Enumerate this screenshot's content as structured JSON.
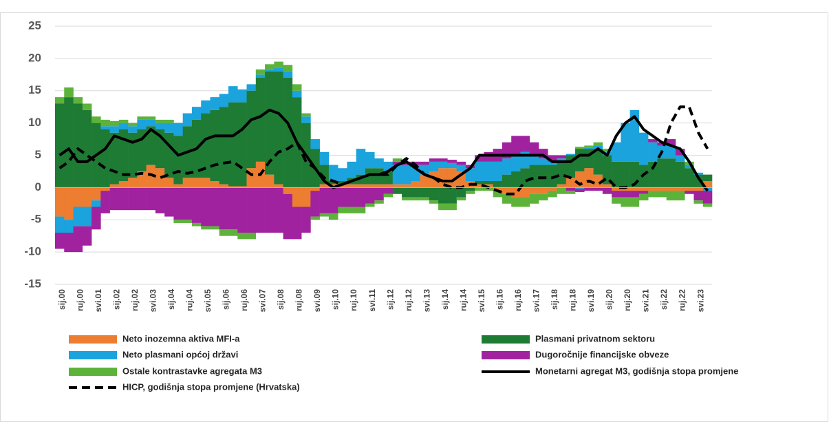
{
  "chart_data": {
    "type": "bar",
    "stacked": true,
    "grid": true,
    "ylim": [
      -15,
      25
    ],
    "yticks": [
      -15,
      -10,
      -5,
      0,
      5,
      10,
      15,
      20,
      25
    ],
    "categories": [
      "sij.00",
      null,
      "ruj.00",
      null,
      "svi.01",
      null,
      "sij.02",
      null,
      "ruj.02",
      null,
      "svi.03",
      null,
      "sij.04",
      null,
      "ruj.04",
      null,
      "svi.05",
      null,
      "sij.06",
      null,
      "ruj.06",
      null,
      "svi.07",
      null,
      "sij.08",
      null,
      "ruj.08",
      null,
      "svi.09",
      null,
      "sij.10",
      null,
      "ruj.10",
      null,
      "svi.11",
      null,
      "sij.12",
      null,
      "ruj.12",
      null,
      "svi.13",
      null,
      "sij.14",
      null,
      "ruj.14",
      null,
      "svi.15",
      null,
      "sij.16",
      null,
      "ruj.16",
      null,
      "svi.17",
      null,
      "sij.18",
      null,
      "ruj.18",
      null,
      "svi.19",
      null,
      "sij.20",
      null,
      "ruj.20",
      null,
      "svi.21",
      null,
      "sij.22",
      null,
      "ruj.22",
      null,
      "svi.23",
      null
    ],
    "series": [
      {
        "name": "Neto inozemna aktiva MFI-a",
        "color": "#ED7D31",
        "type": "bar",
        "values": [
          -4.5,
          -5,
          -3,
          -3,
          -2,
          -0.5,
          0.5,
          1,
          1.5,
          2.5,
          3.5,
          3,
          1.5,
          0.5,
          1.5,
          1.5,
          1.5,
          1,
          0.5,
          0.2,
          0.2,
          3,
          4,
          2,
          0.5,
          -1,
          -3,
          -3,
          -0.5,
          0.5,
          0.5,
          0.5,
          0.5,
          0.5,
          0.5,
          0.5,
          0.5,
          0.5,
          0.5,
          1,
          2,
          2.5,
          3,
          3,
          2.5,
          1,
          0.5,
          0.5,
          -0.5,
          -1,
          -1.5,
          -1.5,
          -1,
          -1,
          -0.5,
          0.5,
          1.5,
          2.5,
          3,
          2,
          0.5,
          -0.5,
          -0.5,
          -0.5,
          -0.5,
          -0.5,
          -0.5,
          -0.5,
          -0.5,
          -0.5,
          -0.5,
          1
        ]
      },
      {
        "name": "Plasmani privatnom sektoru",
        "color": "#1E7B34",
        "type": "bar",
        "values": [
          13,
          14,
          13,
          12,
          10,
          9,
          8,
          8,
          7,
          6.5,
          6,
          6,
          7,
          7.5,
          8,
          9,
          10,
          11,
          12,
          13,
          13,
          12,
          13,
          16,
          17.5,
          17,
          14,
          10,
          6,
          3,
          0.5,
          0.5,
          1,
          1.5,
          2.5,
          2.5,
          2,
          -1,
          -1.5,
          -1.5,
          -1.5,
          -2,
          -2.5,
          -2.5,
          -1.5,
          -0.5,
          0.5,
          0.5,
          1,
          2,
          2.5,
          3,
          3.5,
          3.5,
          3.5,
          3.5,
          3.5,
          3.5,
          3,
          4,
          4.5,
          4,
          4,
          4,
          3.5,
          4,
          4.5,
          4.5,
          4,
          3,
          2,
          1
        ]
      },
      {
        "name": "Neto plasmani općoj državi",
        "color": "#1AA3DC",
        "type": "bar",
        "values": [
          -2.5,
          -2,
          -3,
          -3,
          -1,
          0.5,
          1,
          1,
          1,
          1.5,
          1,
          1,
          1.5,
          2,
          2,
          2,
          2,
          2,
          2,
          2.5,
          2,
          1,
          0.5,
          0.3,
          0.5,
          1,
          1,
          1,
          1.5,
          2,
          2.5,
          2,
          2.5,
          4,
          2.5,
          1.5,
          1.5,
          3,
          3,
          2.5,
          1.5,
          1.5,
          1,
          0.8,
          1,
          2,
          3,
          3,
          3,
          2.5,
          2.5,
          2.5,
          1.5,
          1,
          0.5,
          0.5,
          0.2,
          -0.2,
          0.2,
          0.5,
          0.5,
          3,
          6,
          8,
          5,
          3,
          2,
          2,
          1,
          0.5,
          0.3,
          -0.5
        ]
      },
      {
        "name": "Dugoročnije financijske obveze",
        "color": "#A0229F",
        "type": "bar",
        "values": [
          -2.5,
          -3,
          -4,
          -3,
          -3.5,
          -3.5,
          -3.5,
          -3.5,
          -3.5,
          -3.5,
          -3.5,
          -4,
          -4.5,
          -5,
          -5,
          -5.5,
          -6,
          -6,
          -6.5,
          -6.5,
          -7,
          -7,
          -7,
          -7,
          -7,
          -7,
          -5,
          -4,
          -4,
          -4,
          -4,
          -3,
          -3,
          -3,
          -2.5,
          -2,
          -1,
          0.5,
          0.5,
          0.5,
          0.5,
          0.5,
          0.5,
          0.5,
          0.5,
          0.5,
          1,
          1.5,
          2,
          2.5,
          3,
          2.5,
          2,
          1.5,
          1,
          0.5,
          -0.5,
          -0.5,
          -0.5,
          -0.5,
          -1,
          -1,
          -1,
          -1,
          -0.5,
          0.5,
          0.5,
          1,
          1,
          -0.5,
          -1.5,
          -2
        ]
      },
      {
        "name": "Ostale kontrastavke agregata M3",
        "color": "#5DB33A",
        "type": "bar",
        "values": [
          1,
          1.5,
          1,
          1,
          1,
          1,
          0.8,
          0.5,
          0.5,
          0.5,
          0.5,
          0.5,
          0.5,
          -0.5,
          -0.5,
          -0.5,
          -0.5,
          -0.5,
          -1,
          -1,
          -1,
          -1,
          0.8,
          0.8,
          1,
          1,
          1,
          0.5,
          -0.5,
          -0.5,
          -1,
          -1,
          -1,
          -1,
          -0.5,
          -0.5,
          -0.5,
          0.5,
          -0.5,
          -0.5,
          -0.5,
          -0.5,
          -1,
          -1,
          -0.5,
          -0.5,
          -0.5,
          -0.5,
          -1,
          -1.5,
          -1.5,
          -1.5,
          -1.5,
          -1,
          -1,
          -1,
          -0.5,
          0.3,
          0.3,
          0.5,
          0.5,
          -1,
          -1.5,
          -1.5,
          -1,
          -1,
          -1,
          -1.5,
          -1.5,
          0.5,
          -0.5,
          -0.5
        ]
      },
      {
        "name": "Monetarni agregat M3, godišnja stopa promjene",
        "color": "#000000",
        "type": "line",
        "values": [
          5,
          6,
          4,
          4,
          5,
          6,
          8,
          7.5,
          7,
          7.5,
          9,
          8,
          6.5,
          5,
          5.5,
          6,
          7.5,
          8,
          8,
          8,
          9,
          10.5,
          11,
          12,
          11.5,
          10,
          7,
          5,
          3,
          1,
          0,
          0.5,
          1,
          1.5,
          2,
          2,
          2.5,
          3.5,
          4,
          3,
          2,
          1.5,
          1,
          1,
          2,
          3,
          5,
          5,
          5,
          5,
          5,
          5,
          5,
          5,
          4,
          4,
          4,
          5,
          5,
          6,
          5,
          8,
          10,
          11,
          9,
          8,
          7,
          6.5,
          6,
          4,
          1.5,
          -0.5
        ]
      },
      {
        "name": "HICP, godišnja stopa promjene (Hrvatska)",
        "color": "#000000",
        "type": "line",
        "dash": true,
        "values": [
          3,
          4,
          6,
          5,
          4,
          3,
          2.5,
          2,
          2,
          2.2,
          2,
          1.5,
          2,
          2.5,
          2.2,
          2.5,
          3,
          3.5,
          3.8,
          4,
          3,
          2,
          2,
          4,
          5.5,
          6,
          7,
          4,
          3,
          1.5,
          1,
          0.5,
          1,
          1.5,
          2,
          2,
          2,
          3.5,
          4.5,
          3.5,
          2,
          1.5,
          0.5,
          0,
          0,
          0.5,
          0.5,
          0,
          -0.5,
          -1,
          -1,
          1,
          1.5,
          1.5,
          1.5,
          2,
          1.5,
          0.5,
          1,
          0.5,
          1.5,
          0,
          0,
          0.5,
          2,
          3,
          5.5,
          10,
          12.5,
          12.5,
          8.5,
          6
        ]
      }
    ]
  }
}
